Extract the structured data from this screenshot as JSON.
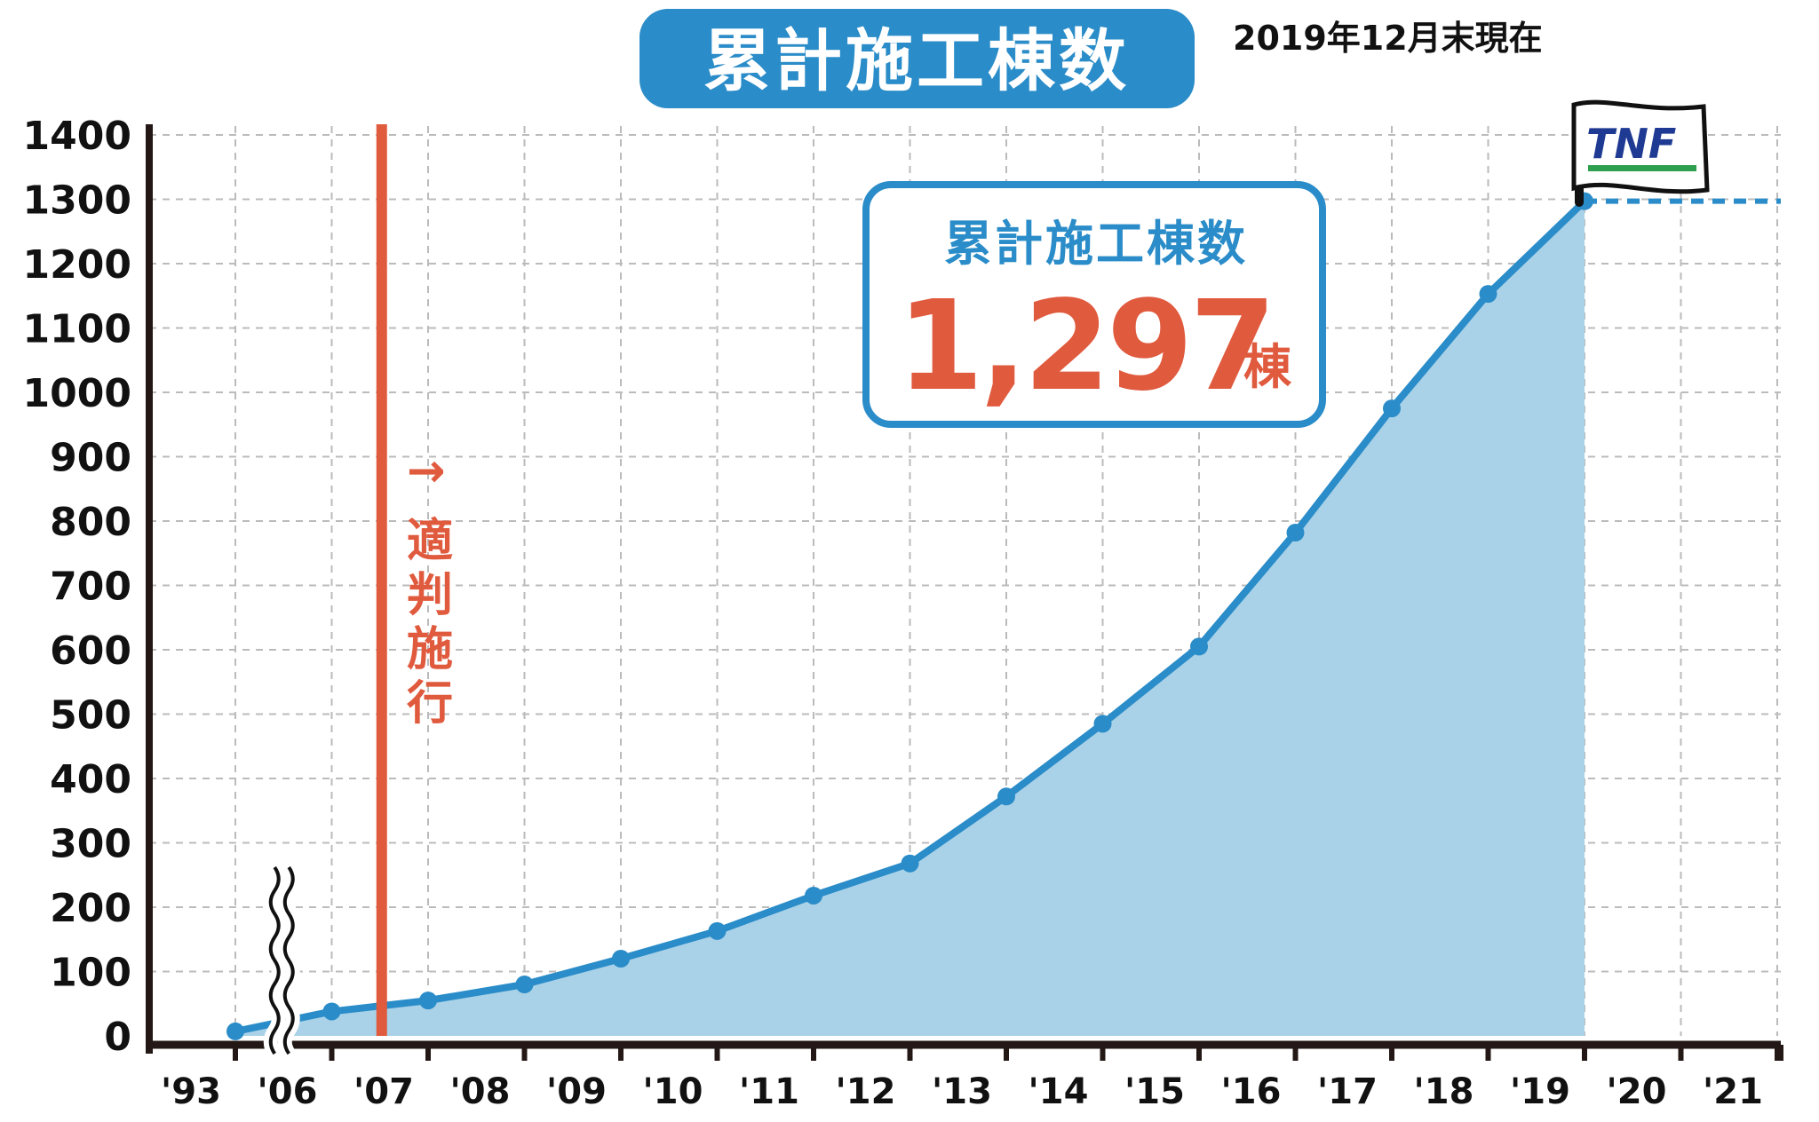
{
  "title": "累計施工棟数",
  "date_note": "2019年12月末現在",
  "callout": {
    "title": "累計施工棟数",
    "value": "1,297",
    "unit": "棟"
  },
  "annotation": {
    "arrow": "→",
    "chars": [
      "適",
      "判",
      "施",
      "行"
    ]
  },
  "logo": {
    "text": "TNF"
  },
  "colors": {
    "primary": "#2a8cc8",
    "fill": "#a9d2e8",
    "accent": "#e05a3e",
    "grid": "#bbbbbb",
    "axis": "#231815",
    "logo_green": "#2e9e4f",
    "logo_navy": "#1f3a93"
  },
  "chart_data": {
    "type": "area",
    "title": "累計施工棟数",
    "x_tick_labels": [
      "'93",
      "'06",
      "'07",
      "'08",
      "'09",
      "'10",
      "'11",
      "'12",
      "'13",
      "'14",
      "'15",
      "'16",
      "'17",
      "'18",
      "'19",
      "'20",
      "'21"
    ],
    "y_ticks": [
      0,
      100,
      200,
      300,
      400,
      500,
      600,
      700,
      800,
      900,
      1000,
      1100,
      1200,
      1300,
      1400
    ],
    "ylim": [
      0,
      1400
    ],
    "axis_break_between": [
      "'93",
      "'06"
    ],
    "series": [
      {
        "points": [
          {
            "x": "'93",
            "y": 7
          },
          {
            "x": "'06",
            "y": 38
          },
          {
            "x": "'07",
            "y": 55
          },
          {
            "x": "'08",
            "y": 80
          },
          {
            "x": "'09",
            "y": 120
          },
          {
            "x": "'10",
            "y": 163
          },
          {
            "x": "'11",
            "y": 218
          },
          {
            "x": "'12",
            "y": 268
          },
          {
            "x": "'13",
            "y": 372
          },
          {
            "x": "'14",
            "y": 485
          },
          {
            "x": "'15",
            "y": 605
          },
          {
            "x": "'16",
            "y": 782
          },
          {
            "x": "'17",
            "y": 975
          },
          {
            "x": "'18",
            "y": 1153
          },
          {
            "x": "'19",
            "y": 1297
          }
        ]
      }
    ],
    "reference_line": {
      "label": "適判施行",
      "x": "'07"
    },
    "projection": {
      "y": 1297,
      "from": "'19",
      "to": "'21",
      "style": "dashed"
    },
    "grid": true
  }
}
